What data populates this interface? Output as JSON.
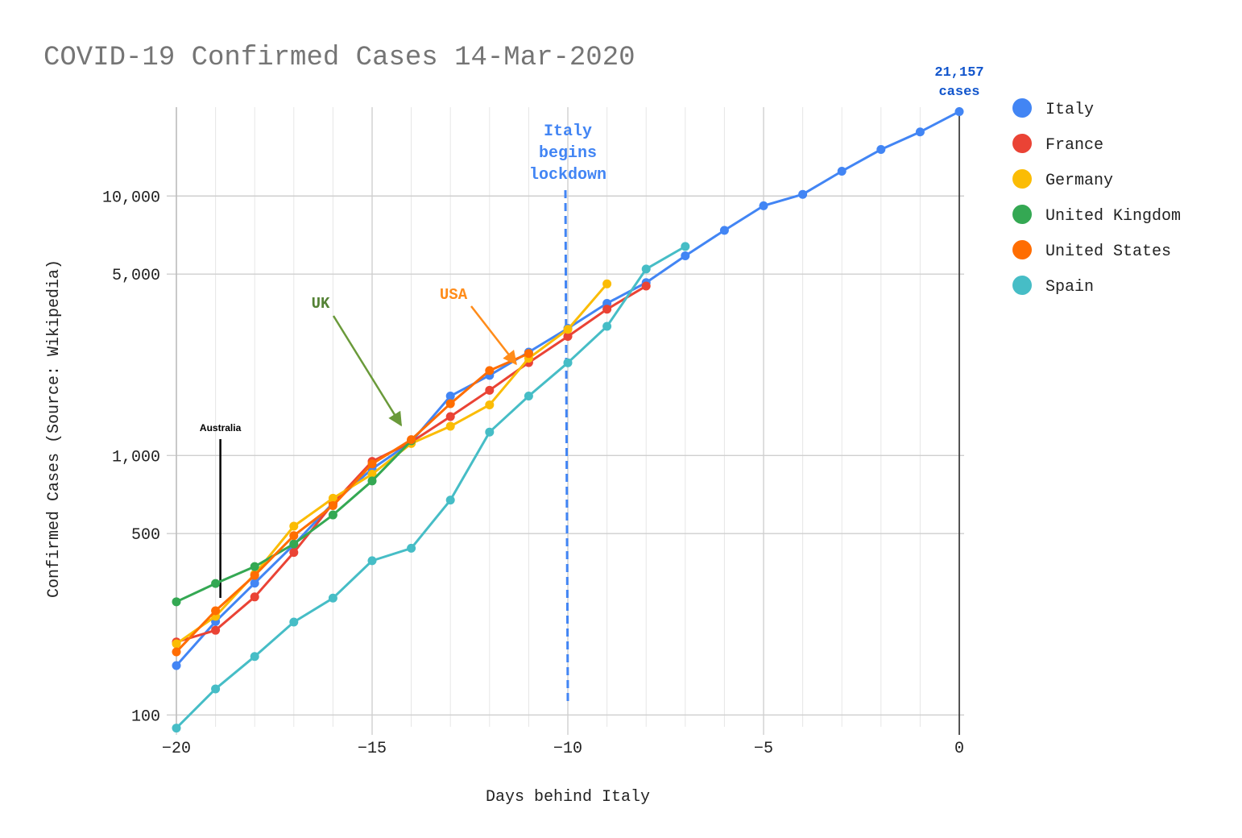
{
  "chart_data": {
    "type": "line",
    "title": "COVID-19 Confirmed Cases 14-Mar-2020",
    "xlabel": "Days behind Italy",
    "ylabel": "Confirmed Cases (Source: Wikipedia)",
    "y_scale": "log",
    "xlim": [
      -20,
      0
    ],
    "ylim": [
      90,
      22000
    ],
    "x_ticks": [
      {
        "value": -20,
        "label": "−20"
      },
      {
        "value": -15,
        "label": "−15"
      },
      {
        "value": -10,
        "label": "−10"
      },
      {
        "value": -5,
        "label": "−5"
      },
      {
        "value": 0,
        "label": "0"
      }
    ],
    "y_ticks": [
      {
        "value": 100,
        "label": "100"
      },
      {
        "value": 500,
        "label": "500"
      },
      {
        "value": 1000,
        "label": "1,000"
      },
      {
        "value": 5000,
        "label": "5,000"
      },
      {
        "value": 10000,
        "label": "10,000"
      }
    ],
    "grid": true,
    "legend_position": "right",
    "series": [
      {
        "name": "Italy",
        "color": "#4285F4",
        "x": [
          -20,
          -19,
          -18,
          -17,
          -16,
          -15,
          -14,
          -13,
          -12,
          -11,
          -10,
          -9,
          -8,
          -7,
          -6,
          -5,
          -4,
          -3,
          -2,
          -1,
          0
        ],
        "values": [
          155,
          229,
          322,
          453,
          655,
          888,
          1128,
          1694,
          2036,
          2502,
          3089,
          3858,
          4636,
          5883,
          7375,
          9172,
          10149,
          12462,
          15113,
          17660,
          21157
        ]
      },
      {
        "name": "France",
        "color": "#EA4335",
        "x": [
          -20,
          -19,
          -18,
          -17,
          -16,
          -15,
          -14,
          -13,
          -12,
          -11,
          -10,
          -9,
          -8
        ],
        "values": [
          191,
          212,
          285,
          423,
          653,
          949,
          1126,
          1412,
          1784,
          2281,
          2876,
          3661,
          4499
        ]
      },
      {
        "name": "Germany",
        "color": "#FBBC04",
        "x": [
          -20,
          -19,
          -18,
          -17,
          -16,
          -15,
          -14,
          -13,
          -12,
          -11,
          -10,
          -9
        ],
        "values": [
          188,
          240,
          349,
          534,
          684,
          847,
          1112,
          1296,
          1567,
          2369,
          3062,
          4585
        ]
      },
      {
        "name": "United Kingdom",
        "color": "#34A853",
        "x": [
          -20,
          -19,
          -18,
          -17,
          -16,
          -15,
          -14
        ],
        "values": [
          273,
          321,
          373,
          456,
          590,
          798,
          1140
        ]
      },
      {
        "name": "United States",
        "color": "#FF6D01",
        "x": [
          -20,
          -19,
          -18,
          -17,
          -16,
          -15,
          -14,
          -13,
          -12,
          -11
        ],
        "values": [
          175,
          252,
          345,
          491,
          641,
          928,
          1151,
          1584,
          2125,
          2472
        ]
      },
      {
        "name": "Spain",
        "color": "#46BDC6",
        "x": [
          -20,
          -19,
          -18,
          -17,
          -16,
          -15,
          -14,
          -13,
          -12,
          -11,
          -10,
          -9,
          -8,
          -7
        ],
        "values": [
          89,
          126,
          168,
          228,
          282,
          393,
          439,
          673,
          1231,
          1695,
          2277,
          3146,
          5232,
          6391
        ]
      }
    ],
    "annotations": [
      {
        "text": [
          "Italy",
          "begins",
          "lockdown"
        ],
        "color": "#4285F4",
        "x": -10
      },
      {
        "text": [
          "21,157",
          "cases"
        ],
        "color": "#1155CC",
        "x": 0,
        "y": 21157
      },
      {
        "text": "UK",
        "color": "#548235",
        "arrow_to": {
          "x": -14.3,
          "y": 1150
        }
      },
      {
        "text": "USA",
        "color": "#FF8C1A",
        "arrow_to": {
          "x": -11.3,
          "y": 2750
        }
      },
      {
        "text": "Australia",
        "color": "#000000",
        "x": -19
      }
    ]
  }
}
